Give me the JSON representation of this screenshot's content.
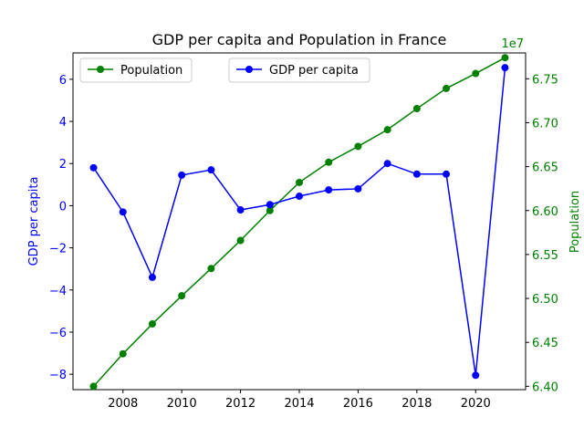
{
  "chart_data": {
    "type": "line",
    "title": "GDP per capita and Population in France",
    "x": [
      2007,
      2008,
      2009,
      2010,
      2011,
      2012,
      2013,
      2014,
      2015,
      2016,
      2017,
      2018,
      2019,
      2020,
      2021
    ],
    "x_ticks": [
      2008,
      2010,
      2012,
      2014,
      2016,
      2018,
      2020
    ],
    "xlim": [
      2006.3,
      2021.7
    ],
    "grid": false,
    "axes": {
      "left": {
        "label": "GDP per capita",
        "color": "#0000ff",
        "ylim": [
          -8.73,
          7.25
        ],
        "ticks": [
          -8,
          -6,
          -4,
          -2,
          0,
          2,
          4,
          6
        ]
      },
      "right": {
        "label": "Population",
        "color": "#008000",
        "ylim": [
          6.3962,
          6.7794
        ],
        "ticks": [
          6.4,
          6.45,
          6.5,
          6.55,
          6.6,
          6.65,
          6.7,
          6.75
        ],
        "tick_labels": [
          "6.40",
          "6.45",
          "6.50",
          "6.55",
          "6.60",
          "6.65",
          "6.70",
          "6.75"
        ],
        "offset_label": "1e7"
      }
    },
    "series": [
      {
        "name": "GDP per capita",
        "axis": "left",
        "color": "#0000ff",
        "marker": "circle",
        "values": [
          1.8,
          -0.3,
          -3.4,
          1.45,
          1.7,
          -0.2,
          0.05,
          0.45,
          0.75,
          0.8,
          2.0,
          1.5,
          1.5,
          -8.05,
          6.55
        ]
      },
      {
        "name": "Population",
        "axis": "right",
        "color": "#008000",
        "marker": "circle",
        "values": [
          6.4,
          6.437,
          6.471,
          6.503,
          6.534,
          6.566,
          6.6,
          6.632,
          6.655,
          6.673,
          6.692,
          6.716,
          6.739,
          6.756,
          6.774
        ]
      }
    ],
    "legends": [
      {
        "series": "Population",
        "placement": "upper-left"
      },
      {
        "series": "GDP per capita",
        "placement": "upper-center"
      }
    ]
  }
}
